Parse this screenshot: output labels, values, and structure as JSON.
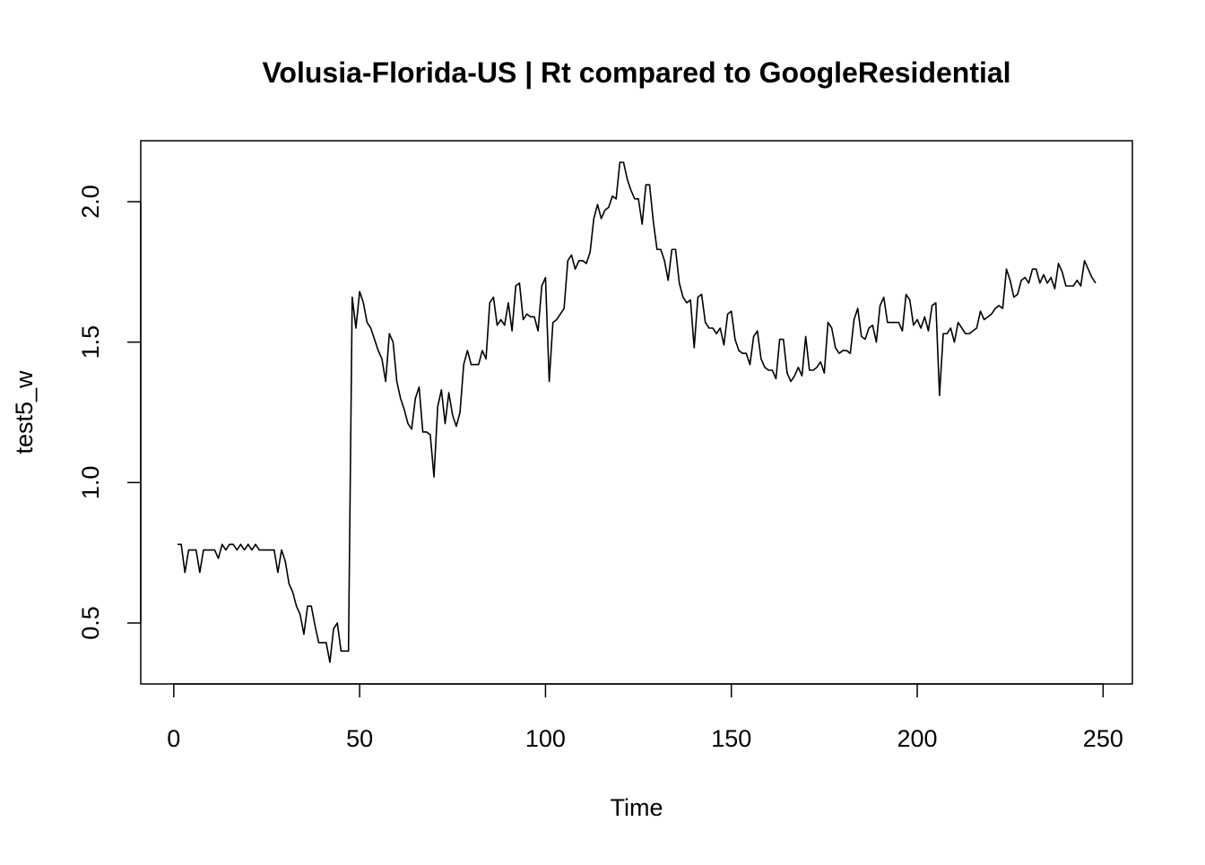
{
  "chart_data": {
    "type": "line",
    "title": "Volusia-Florida-US | Rt compared to GoogleResidential",
    "x_label": "Time",
    "y_label": "test5_w",
    "color": "#000000",
    "x": [
      1,
      2,
      3,
      4,
      5,
      6,
      7,
      8,
      9,
      10,
      11,
      12,
      13,
      14,
      15,
      16,
      17,
      18,
      19,
      20,
      21,
      22,
      23,
      24,
      25,
      26,
      27,
      28,
      29,
      30,
      31,
      32,
      33,
      34,
      35,
      36,
      37,
      38,
      39,
      40,
      41,
      42,
      43,
      44,
      45,
      46,
      47,
      48,
      49,
      50,
      51,
      52,
      53,
      54,
      55,
      56,
      57,
      58,
      59,
      60,
      61,
      62,
      63,
      64,
      65,
      66,
      67,
      68,
      69,
      70,
      71,
      72,
      73,
      74,
      75,
      76,
      77,
      78,
      79,
      80,
      81,
      82,
      83,
      84,
      85,
      86,
      87,
      88,
      89,
      90,
      91,
      92,
      93,
      94,
      95,
      96,
      97,
      98,
      99,
      100,
      101,
      102,
      103,
      104,
      105,
      106,
      107,
      108,
      109,
      110,
      111,
      112,
      113,
      114,
      115,
      116,
      117,
      118,
      119,
      120,
      121,
      122,
      123,
      124,
      125,
      126,
      127,
      128,
      129,
      130,
      131,
      132,
      133,
      134,
      135,
      136,
      137,
      138,
      139,
      140,
      141,
      142,
      143,
      144,
      145,
      146,
      147,
      148,
      149,
      150,
      151,
      152,
      153,
      154,
      155,
      156,
      157,
      158,
      159,
      160,
      161,
      162,
      163,
      164,
      165,
      166,
      167,
      168,
      169,
      170,
      171,
      172,
      173,
      174,
      175,
      176,
      177,
      178,
      179,
      180,
      181,
      182,
      183,
      184,
      185,
      186,
      187,
      188,
      189,
      190,
      191,
      192,
      193,
      194,
      195,
      196,
      197,
      198,
      199,
      200,
      201,
      202,
      203,
      204,
      205,
      206,
      207,
      208,
      209,
      210,
      211,
      212,
      213,
      214,
      215,
      216,
      217,
      218,
      219,
      220,
      221,
      222,
      223,
      224,
      225,
      226,
      227,
      228,
      229,
      230,
      231,
      232,
      233,
      234,
      235,
      236,
      237,
      238,
      239,
      240,
      241,
      242,
      243,
      244,
      245,
      246,
      247,
      248
    ],
    "values": [
      0.78,
      0.78,
      0.68,
      0.76,
      0.76,
      0.76,
      0.68,
      0.76,
      0.76,
      0.76,
      0.76,
      0.73,
      0.78,
      0.76,
      0.78,
      0.78,
      0.76,
      0.78,
      0.76,
      0.78,
      0.76,
      0.78,
      0.76,
      0.76,
      0.76,
      0.76,
      0.76,
      0.68,
      0.76,
      0.72,
      0.64,
      0.61,
      0.56,
      0.53,
      0.46,
      0.56,
      0.56,
      0.49,
      0.43,
      0.43,
      0.43,
      0.36,
      0.48,
      0.5,
      0.4,
      0.4,
      0.4,
      1.66,
      1.55,
      1.68,
      1.64,
      1.57,
      1.55,
      1.51,
      1.47,
      1.44,
      1.36,
      1.53,
      1.5,
      1.36,
      1.3,
      1.26,
      1.21,
      1.19,
      1.3,
      1.34,
      1.18,
      1.18,
      1.17,
      1.02,
      1.27,
      1.33,
      1.21,
      1.32,
      1.24,
      1.2,
      1.25,
      1.42,
      1.47,
      1.42,
      1.42,
      1.42,
      1.47,
      1.44,
      1.64,
      1.66,
      1.56,
      1.58,
      1.56,
      1.64,
      1.54,
      1.7,
      1.71,
      1.58,
      1.6,
      1.59,
      1.59,
      1.54,
      1.7,
      1.73,
      1.36,
      1.57,
      1.58,
      1.6,
      1.62,
      1.79,
      1.81,
      1.76,
      1.79,
      1.79,
      1.78,
      1.82,
      1.94,
      1.99,
      1.94,
      1.97,
      1.98,
      2.02,
      2.01,
      2.14,
      2.14,
      2.08,
      2.04,
      2.01,
      2.01,
      1.92,
      2.06,
      2.06,
      1.93,
      1.83,
      1.83,
      1.79,
      1.72,
      1.83,
      1.83,
      1.71,
      1.66,
      1.64,
      1.65,
      1.48,
      1.66,
      1.67,
      1.57,
      1.55,
      1.55,
      1.53,
      1.55,
      1.49,
      1.6,
      1.61,
      1.51,
      1.47,
      1.46,
      1.46,
      1.42,
      1.52,
      1.54,
      1.44,
      1.41,
      1.4,
      1.4,
      1.37,
      1.51,
      1.51,
      1.39,
      1.36,
      1.38,
      1.41,
      1.38,
      1.52,
      1.4,
      1.4,
      1.41,
      1.43,
      1.39,
      1.57,
      1.55,
      1.48,
      1.46,
      1.47,
      1.47,
      1.46,
      1.58,
      1.62,
      1.52,
      1.51,
      1.55,
      1.56,
      1.5,
      1.63,
      1.66,
      1.57,
      1.57,
      1.57,
      1.57,
      1.54,
      1.67,
      1.65,
      1.56,
      1.58,
      1.55,
      1.59,
      1.54,
      1.63,
      1.64,
      1.31,
      1.53,
      1.53,
      1.55,
      1.5,
      1.57,
      1.55,
      1.53,
      1.53,
      1.54,
      1.55,
      1.61,
      1.58,
      1.59,
      1.6,
      1.62,
      1.63,
      1.62,
      1.76,
      1.72,
      1.66,
      1.67,
      1.72,
      1.73,
      1.71,
      1.76,
      1.76,
      1.71,
      1.74,
      1.71,
      1.73,
      1.69,
      1.78,
      1.75,
      1.7,
      1.7,
      1.7,
      1.72,
      1.7,
      1.79,
      1.76,
      1.73,
      1.71
    ],
    "xlim": [
      -8.88,
      257.88
    ],
    "ylim": [
      0.283,
      2.217
    ],
    "xticks": [
      0,
      50,
      100,
      150,
      200,
      250
    ],
    "yticks": [
      0.5,
      {
        "value": 1,
        "label": "1.0"
      },
      1.5,
      {
        "value": 2,
        "label": "2.0"
      }
    ],
    "grid": false
  }
}
